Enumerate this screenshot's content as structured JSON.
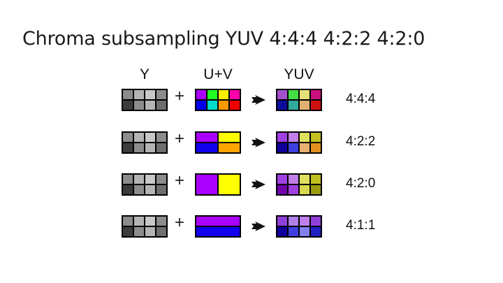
{
  "title": "Chroma subsampling YUV 4:4:4 4:2:2 4:2:0",
  "headers": {
    "y": "Y",
    "uv": "U+V",
    "yuv": "YUV"
  },
  "plus_sign": "+",
  "luma": [
    "#8c8c8c",
    "#b4b4b4",
    "#c8c8c8",
    "#8c8c8c",
    "#3c3c3c",
    "#8c8c8c",
    "#b4b4b4",
    "#6e6e6e"
  ],
  "rows": [
    {
      "label": "4:4:4",
      "uv_cols": 4,
      "uv_rows": 2,
      "uv": [
        "#aa00ff",
        "#22ff22",
        "#ffee00",
        "#ff00aa",
        "#0000ee",
        "#00ddcc",
        "#ff9900",
        "#ee0000"
      ],
      "yuv": [
        "#a44fcc",
        "#44dd44",
        "#e6e07a",
        "#c8107a",
        "#0c0c99",
        "#33aaa0",
        "#e0b070",
        "#cc1010"
      ]
    },
    {
      "label": "4:2:2",
      "uv_cols": 2,
      "uv_rows": 2,
      "uv": [
        "#aa00ff",
        "#ffff00",
        "#1100ee",
        "#ffa500"
      ],
      "yuv": [
        "#a040e0",
        "#c080e8",
        "#e0e060",
        "#c0c020",
        "#100099",
        "#4040e0",
        "#e8b070",
        "#e09020"
      ]
    },
    {
      "label": "4:2:0",
      "uv_cols": 2,
      "uv_rows": 1,
      "uv": [
        "#aa00ff",
        "#ffff00"
      ],
      "yuv": [
        "#a040e0",
        "#c080e8",
        "#e0e060",
        "#c0c020",
        "#7000a8",
        "#a040e0",
        "#d8d850",
        "#9a9a10"
      ]
    },
    {
      "label": "4:1:1",
      "uv_cols": 1,
      "uv_rows": 2,
      "uv": [
        "#aa00ff",
        "#1100ee"
      ],
      "yuv": [
        "#9040d8",
        "#b080e8",
        "#c080ec",
        "#9040d8",
        "#100099",
        "#4040e0",
        "#8080f0",
        "#2020c0"
      ]
    }
  ]
}
